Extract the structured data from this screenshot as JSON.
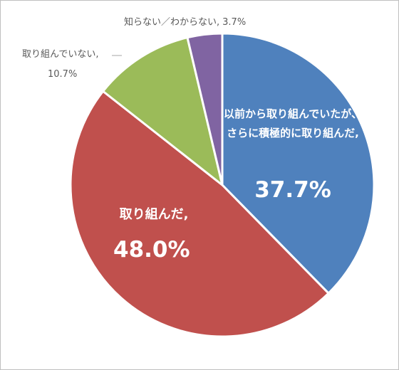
{
  "chart_data": {
    "type": "pie",
    "categories": [
      "以前から取り組んでいたが、さらに積極的に取り組んだ,",
      "取り組んだ,",
      "取り組んでいない,",
      "知らない／わからない,"
    ],
    "values": [
      37.7,
      48.0,
      10.7,
      3.7
    ],
    "value_labels": [
      "37.7%",
      "48.0%",
      "10.7%",
      "3.7%"
    ],
    "colors": [
      "#4f81bd",
      "#c0504d",
      "#9bbb59",
      "#8064a2"
    ]
  }
}
